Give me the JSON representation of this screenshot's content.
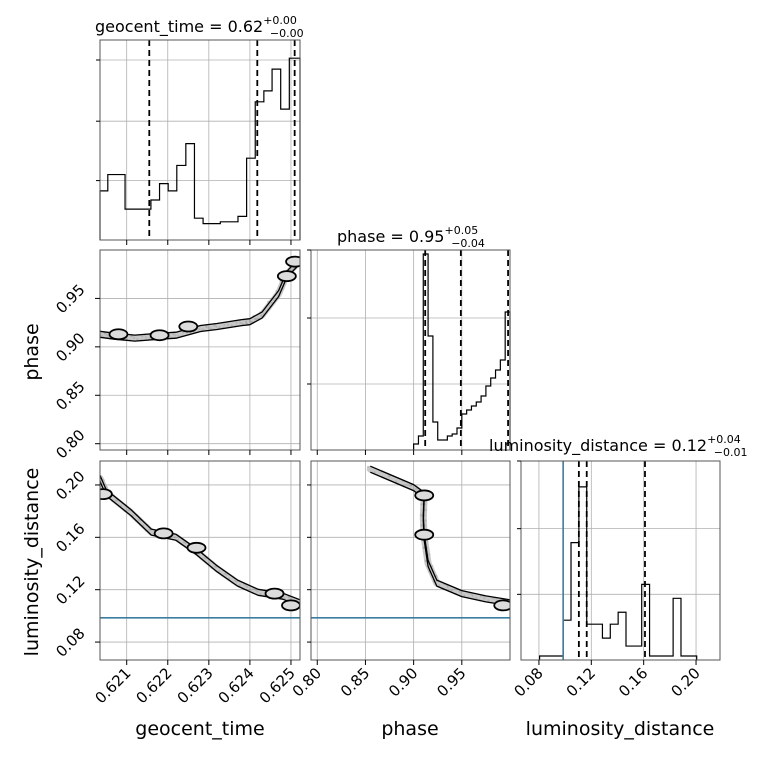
{
  "chart_data": {
    "type": "corner",
    "parameters": [
      "geocent_time",
      "phase",
      "luminosity_distance"
    ],
    "titles": [
      {
        "param": "geocent_time",
        "lead": "geocent_time = 0.62",
        "plus": "+0.00",
        "minus": "−0.00"
      },
      {
        "param": "phase",
        "lead": "phase = 0.95",
        "plus": "+0.05",
        "minus": "−0.04"
      },
      {
        "param": "luminosity_distance",
        "lead": "luminosity_distance = 0.12",
        "plus": "+0.04",
        "minus": "−0.01"
      }
    ],
    "axes": {
      "geocent_time": {
        "range": [
          0.62035,
          0.62522
        ],
        "ticks": [
          0.621,
          0.622,
          0.623,
          0.624,
          0.625
        ],
        "tick_labels": [
          "0.621",
          "0.622",
          "0.623",
          "0.624",
          "0.625"
        ],
        "xlabel": "geocent_time"
      },
      "phase": {
        "range": [
          0.7935,
          1.0
        ],
        "ticks": [
          0.8,
          0.85,
          0.9,
          0.95
        ],
        "tick_labels": [
          "0.80",
          "0.85",
          "0.90",
          "0.95"
        ],
        "xlabel": "phase",
        "ylabel": "phase"
      },
      "luminosity_distance": {
        "range": [
          0.0663,
          0.2183
        ],
        "ticks": [
          0.08,
          0.12,
          0.16,
          0.2
        ],
        "tick_labels": [
          "0.08",
          "0.12",
          "0.16",
          "0.20"
        ],
        "xlabel": "luminosity_distance",
        "ylabel": "luminosity_distance"
      }
    },
    "hist1d": {
      "geocent_time": {
        "edges": [
          0.62035,
          0.62054,
          0.62075,
          0.62096,
          0.62117,
          0.62138,
          0.62159,
          0.6218,
          0.62201,
          0.62222,
          0.62244,
          0.62265,
          0.62286,
          0.62307,
          0.62328,
          0.6235,
          0.62371,
          0.62392,
          0.62413,
          0.62434,
          0.62454,
          0.62475,
          0.62496,
          0.62522
        ],
        "counts": [
          0.27,
          0.36,
          0.36,
          0.17,
          0.17,
          0.17,
          0.22,
          0.31,
          0.27,
          0.41,
          0.53,
          0.12,
          0.09,
          0.09,
          0.1,
          0.1,
          0.13,
          0.45,
          0.76,
          0.82,
          0.94,
          0.72,
          1.0
        ],
        "quantiles": [
          0.62155,
          0.62418,
          0.62509
        ],
        "ymax": 1.1
      },
      "phase": {
        "edges": [
          0.9,
          0.905,
          0.91,
          0.915,
          0.92,
          0.925,
          0.93,
          0.935,
          0.94,
          0.945,
          0.95,
          0.955,
          0.96,
          0.965,
          0.97,
          0.975,
          0.98,
          0.985,
          0.99,
          0.995,
          1.0
        ],
        "counts": [
          0.03,
          0.07,
          0.98,
          0.57,
          0.14,
          0.05,
          0.05,
          0.07,
          0.08,
          0.11,
          0.18,
          0.2,
          0.22,
          0.24,
          0.27,
          0.32,
          0.36,
          0.4,
          0.45,
          0.69
        ],
        "quantiles": [
          0.912,
          0.949,
          0.998
        ],
        "ymax": 1.0
      },
      "luminosity_distance": {
        "edges": [
          0.0805,
          0.0865,
          0.0925,
          0.0985,
          0.1045,
          0.1105,
          0.1165,
          0.1225,
          0.1285,
          0.1345,
          0.1405,
          0.1465,
          0.1525,
          0.1585,
          0.1645,
          0.1705,
          0.1765,
          0.1825,
          0.1885,
          0.1945,
          0.2005
        ],
        "counts": [
          0.02,
          0.02,
          0.02,
          0.2,
          0.59,
          0.87,
          0.18,
          0.18,
          0.11,
          0.18,
          0.24,
          0.07,
          0.07,
          0.38,
          0.02,
          0.02,
          0.02,
          0.31,
          0.02,
          0.02
        ],
        "quantiles": [
          0.1105,
          0.1165,
          0.161
        ],
        "truth": 0.0985,
        "ymax": 1.0
      }
    },
    "hist2d": [
      {
        "x": "geocent_time",
        "y": "phase",
        "track": [
          [
            0.62035,
            0.913
          ],
          [
            0.6207,
            0.911
          ],
          [
            0.6212,
            0.909
          ],
          [
            0.6218,
            0.911
          ],
          [
            0.6222,
            0.912
          ],
          [
            0.6228,
            0.919
          ],
          [
            0.6232,
            0.921
          ],
          [
            0.6238,
            0.925
          ],
          [
            0.624,
            0.926
          ],
          [
            0.6243,
            0.933
          ],
          [
            0.6247,
            0.955
          ],
          [
            0.6249,
            0.975
          ],
          [
            0.6252,
            0.988
          ]
        ],
        "blobs": [
          [
            0.6208,
            0.913
          ],
          [
            0.6218,
            0.912
          ],
          [
            0.6225,
            0.921
          ],
          [
            0.6249,
            0.973
          ],
          [
            0.6251,
            0.988
          ]
        ]
      },
      {
        "x": "geocent_time",
        "y": "luminosity_distance",
        "track": [
          [
            0.62035,
            0.205
          ],
          [
            0.6205,
            0.194
          ],
          [
            0.6211,
            0.179
          ],
          [
            0.6216,
            0.164
          ],
          [
            0.6222,
            0.16
          ],
          [
            0.6227,
            0.149
          ],
          [
            0.6232,
            0.136
          ],
          [
            0.6237,
            0.125
          ],
          [
            0.6242,
            0.118
          ],
          [
            0.6248,
            0.115
          ],
          [
            0.62522,
            0.11
          ]
        ],
        "blobs": [
          [
            0.62042,
            0.193
          ],
          [
            0.6219,
            0.163
          ],
          [
            0.6227,
            0.152
          ],
          [
            0.6246,
            0.117
          ],
          [
            0.625,
            0.108
          ]
        ],
        "truth_y": 0.0985
      },
      {
        "x": "phase",
        "y": "luminosity_distance",
        "track": [
          [
            0.855,
            0.212
          ],
          [
            0.9,
            0.198
          ],
          [
            0.911,
            0.192
          ],
          [
            0.91,
            0.175
          ],
          [
            0.911,
            0.16
          ],
          [
            0.915,
            0.14
          ],
          [
            0.924,
            0.125
          ],
          [
            0.95,
            0.117
          ],
          [
            0.975,
            0.113
          ],
          [
            1.0,
            0.11
          ]
        ],
        "blobs": [
          [
            0.911,
            0.192
          ],
          [
            0.911,
            0.162
          ],
          [
            0.993,
            0.108
          ]
        ],
        "truth_y": 0.0985
      }
    ]
  }
}
